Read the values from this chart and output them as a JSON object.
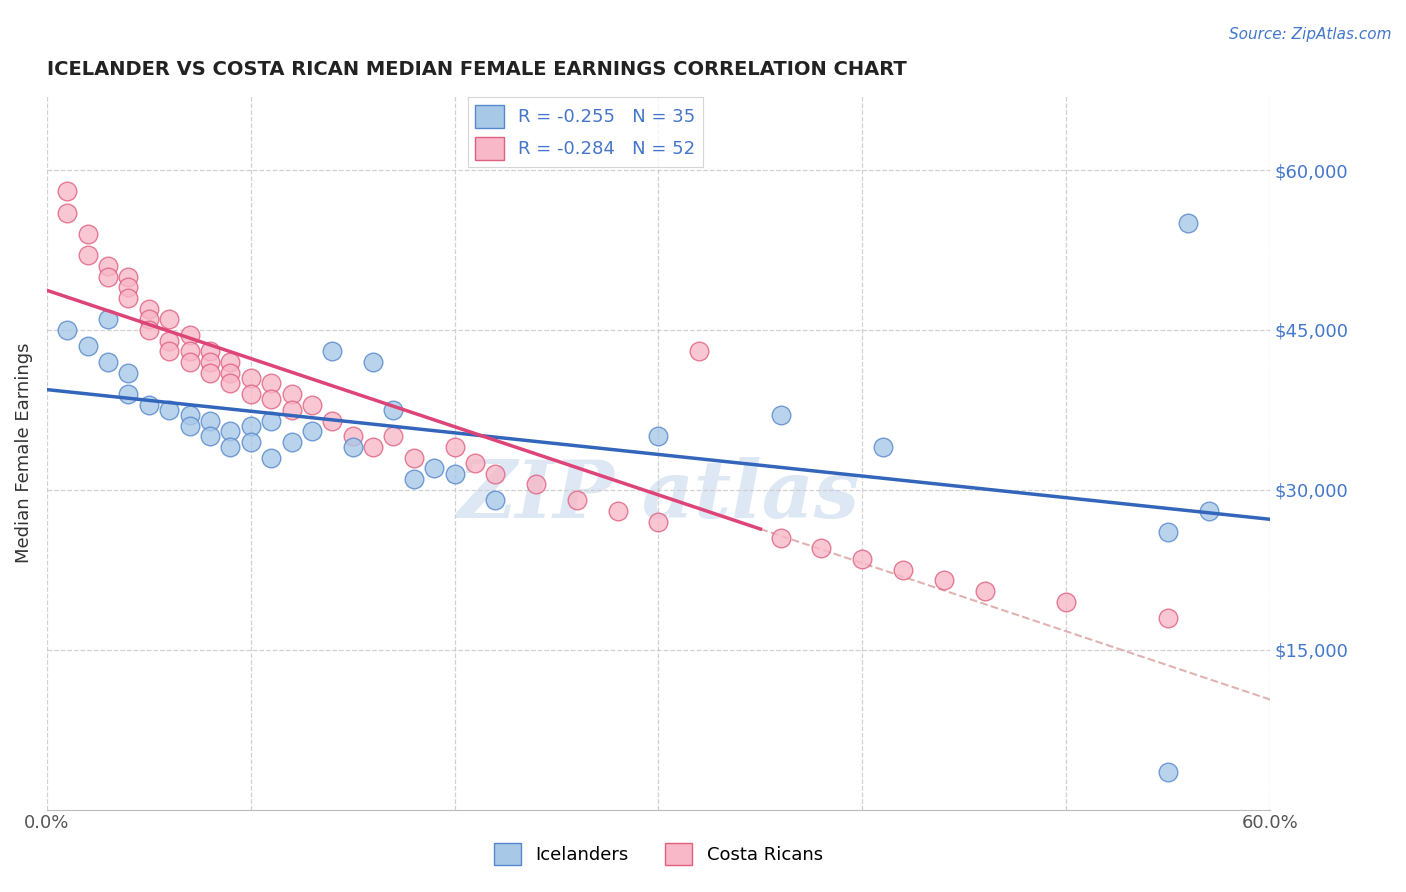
{
  "title": "ICELANDER VS COSTA RICAN MEDIAN FEMALE EARNINGS CORRELATION CHART",
  "source": "Source: ZipAtlas.com",
  "ylabel": "Median Female Earnings",
  "xlim": [
    0.0,
    0.6
  ],
  "ylim": [
    0,
    67000
  ],
  "yticks": [
    15000,
    30000,
    45000,
    60000
  ],
  "ytick_labels": [
    "$15,000",
    "$30,000",
    "$45,000",
    "$60,000"
  ],
  "xticks": [
    0.0,
    0.1,
    0.2,
    0.3,
    0.4,
    0.5,
    0.6
  ],
  "xtick_labels": [
    "0.0%",
    "",
    "",
    "",
    "",
    "",
    "60.0%"
  ],
  "legend1_label": "R = -0.255   N = 35",
  "legend2_label": "R = -0.284   N = 52",
  "blue_fill": "#A8C8E8",
  "pink_fill": "#F8B8C8",
  "blue_edge": "#5588CC",
  "pink_edge": "#E06080",
  "blue_line": "#3366BB",
  "pink_line": "#DD4477",
  "dashed_color": "#DDAAAA",
  "title_color": "#222222",
  "source_color": "#4477CC",
  "icelanders_x": [
    0.01,
    0.02,
    0.03,
    0.03,
    0.04,
    0.04,
    0.05,
    0.06,
    0.07,
    0.07,
    0.08,
    0.08,
    0.09,
    0.09,
    0.1,
    0.1,
    0.11,
    0.11,
    0.12,
    0.13,
    0.14,
    0.15,
    0.16,
    0.17,
    0.18,
    0.19,
    0.2,
    0.22,
    0.3,
    0.36,
    0.41,
    0.55,
    0.56,
    0.57,
    0.55
  ],
  "icelanders_y": [
    45000,
    43500,
    46000,
    42000,
    41000,
    39000,
    38000,
    37500,
    37000,
    36000,
    36500,
    35000,
    35500,
    34000,
    36000,
    34500,
    36500,
    33000,
    34500,
    35500,
    43000,
    34000,
    42000,
    37500,
    31000,
    32000,
    31500,
    29000,
    35000,
    37000,
    34000,
    26000,
    55000,
    28000,
    3500
  ],
  "costa_ricans_x": [
    0.01,
    0.01,
    0.02,
    0.02,
    0.03,
    0.03,
    0.04,
    0.04,
    0.04,
    0.05,
    0.05,
    0.05,
    0.06,
    0.06,
    0.06,
    0.07,
    0.07,
    0.07,
    0.08,
    0.08,
    0.08,
    0.09,
    0.09,
    0.09,
    0.1,
    0.1,
    0.11,
    0.11,
    0.12,
    0.12,
    0.13,
    0.14,
    0.15,
    0.16,
    0.17,
    0.18,
    0.2,
    0.21,
    0.22,
    0.24,
    0.26,
    0.28,
    0.3,
    0.32,
    0.36,
    0.38,
    0.4,
    0.42,
    0.44,
    0.46,
    0.5,
    0.55
  ],
  "costa_ricans_y": [
    58000,
    56000,
    54000,
    52000,
    51000,
    50000,
    50000,
    49000,
    48000,
    47000,
    46000,
    45000,
    46000,
    44000,
    43000,
    44500,
    43000,
    42000,
    43000,
    42000,
    41000,
    42000,
    41000,
    40000,
    40500,
    39000,
    40000,
    38500,
    39000,
    37500,
    38000,
    36500,
    35000,
    34000,
    35000,
    33000,
    34000,
    32500,
    31500,
    30500,
    29000,
    28000,
    27000,
    43000,
    25500,
    24500,
    23500,
    22500,
    21500,
    20500,
    19500,
    18000
  ]
}
